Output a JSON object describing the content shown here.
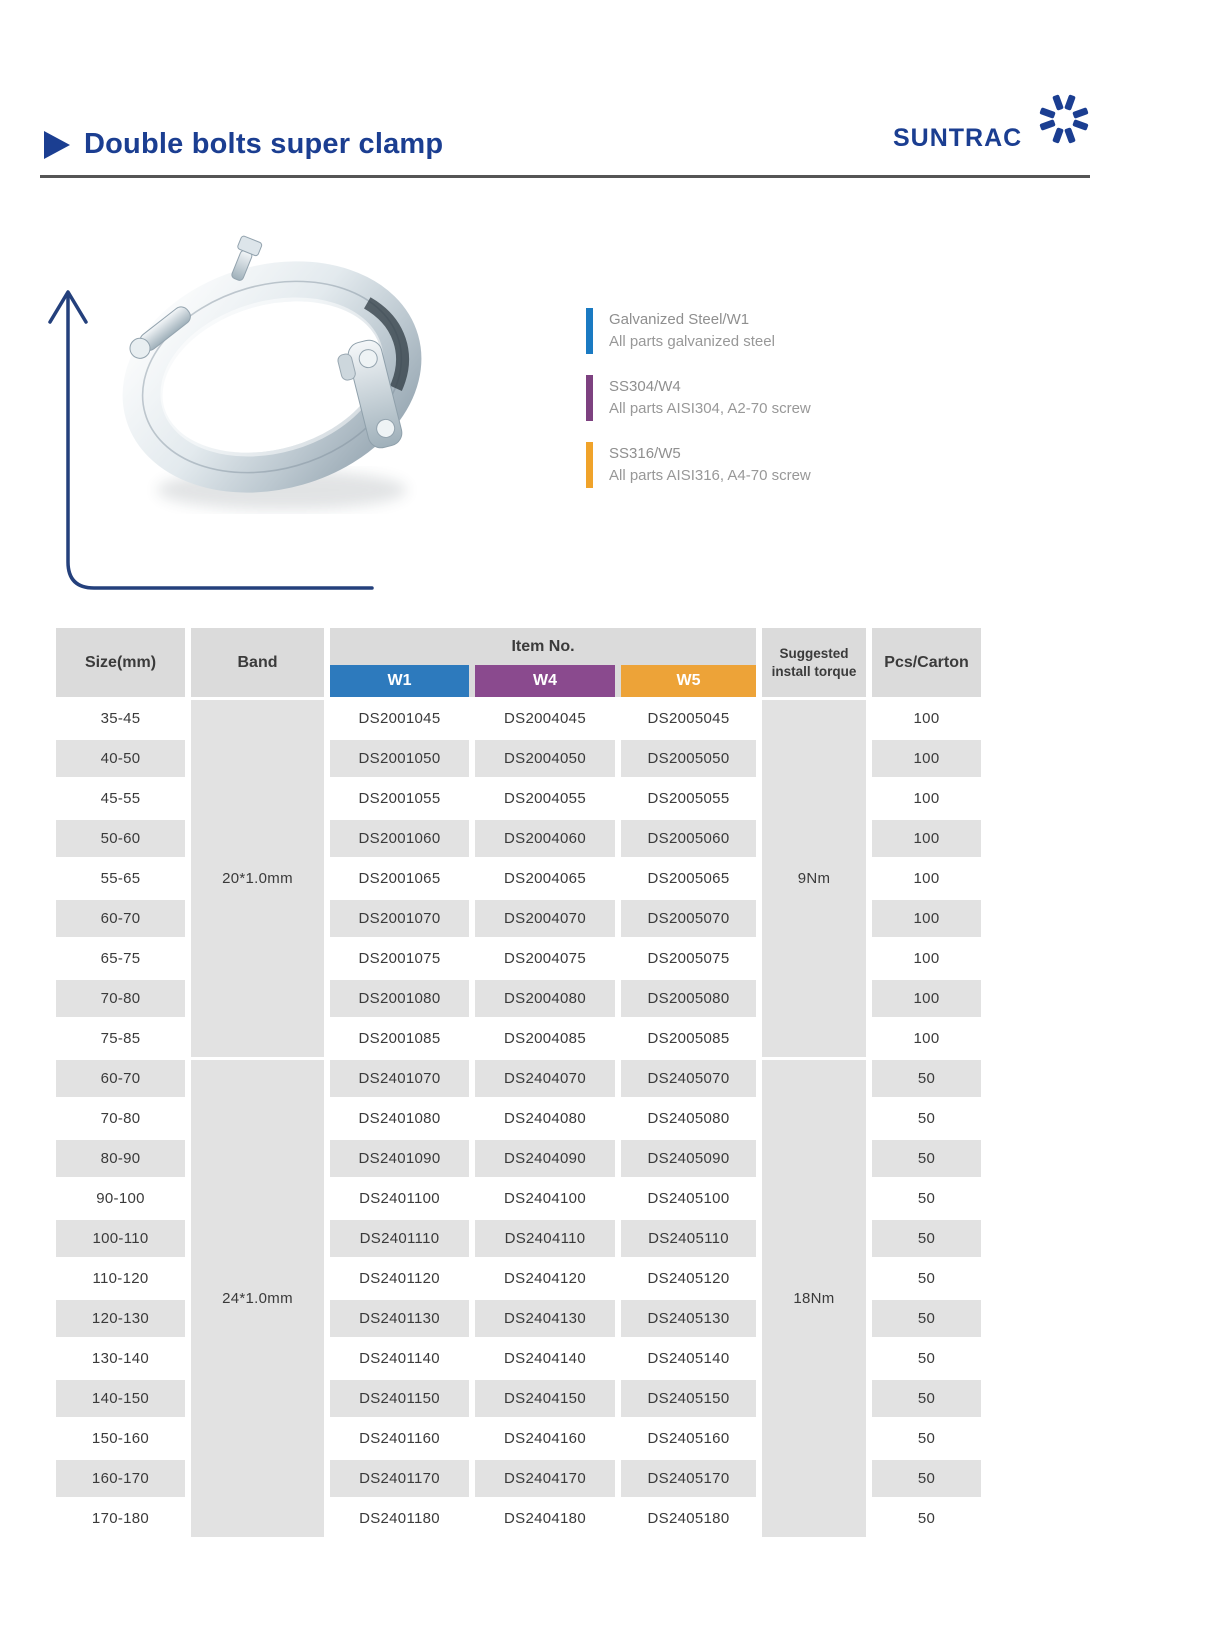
{
  "page": {
    "title": "Double bolts super clamp",
    "brand": "SUNTRAC",
    "colors": {
      "navy": "#1b3e91",
      "rule": "#555555"
    }
  },
  "legend": [
    {
      "code": "Galvanized Steel/W1",
      "desc": "All parts galvanized steel",
      "color": "#1a7ac2"
    },
    {
      "code": "SS304/W4",
      "desc": "All parts AISI304, A2-70 screw",
      "color": "#7d4180"
    },
    {
      "code": "SS316/W5",
      "desc": "All parts AISI316, A4-70 screw",
      "color": "#f0a32a"
    }
  ],
  "table": {
    "headers": {
      "size": "Size(mm)",
      "band": "Band",
      "item_no": "Item No.",
      "w1": "W1",
      "w4": "W4",
      "w5": "W5",
      "torque": "Suggested install torque",
      "pcs": "Pcs/Carton"
    },
    "colors": {
      "w1": "#2d7abd",
      "w4": "#8a4a8e",
      "w5": "#eda338"
    },
    "groups": [
      {
        "band": "20*1.0mm",
        "torque": "9Nm",
        "rows": [
          {
            "size": "35-45",
            "w1": "DS2001045",
            "w4": "DS2004045",
            "w5": "DS2005045",
            "pcs": "100"
          },
          {
            "size": "40-50",
            "w1": "DS2001050",
            "w4": "DS2004050",
            "w5": "DS2005050",
            "pcs": "100"
          },
          {
            "size": "45-55",
            "w1": "DS2001055",
            "w4": "DS2004055",
            "w5": "DS2005055",
            "pcs": "100"
          },
          {
            "size": "50-60",
            "w1": "DS2001060",
            "w4": "DS2004060",
            "w5": "DS2005060",
            "pcs": "100"
          },
          {
            "size": "55-65",
            "w1": "DS2001065",
            "w4": "DS2004065",
            "w5": "DS2005065",
            "pcs": "100"
          },
          {
            "size": "60-70",
            "w1": "DS2001070",
            "w4": "DS2004070",
            "w5": "DS2005070",
            "pcs": "100"
          },
          {
            "size": "65-75",
            "w1": "DS2001075",
            "w4": "DS2004075",
            "w5": "DS2005075",
            "pcs": "100"
          },
          {
            "size": "70-80",
            "w1": "DS2001080",
            "w4": "DS2004080",
            "w5": "DS2005080",
            "pcs": "100"
          },
          {
            "size": "75-85",
            "w1": "DS2001085",
            "w4": "DS2004085",
            "w5": "DS2005085",
            "pcs": "100"
          }
        ]
      },
      {
        "band": "24*1.0mm",
        "torque": "18Nm",
        "rows": [
          {
            "size": "60-70",
            "w1": "DS2401070",
            "w4": "DS2404070",
            "w5": "DS2405070",
            "pcs": "50"
          },
          {
            "size": "70-80",
            "w1": "DS2401080",
            "w4": "DS2404080",
            "w5": "DS2405080",
            "pcs": "50"
          },
          {
            "size": "80-90",
            "w1": "DS2401090",
            "w4": "DS2404090",
            "w5": "DS2405090",
            "pcs": "50"
          },
          {
            "size": "90-100",
            "w1": "DS2401100",
            "w4": "DS2404100",
            "w5": "DS2405100",
            "pcs": "50"
          },
          {
            "size": "100-110",
            "w1": "DS2401110",
            "w4": "DS2404110",
            "w5": "DS2405110",
            "pcs": "50"
          },
          {
            "size": "110-120",
            "w1": "DS2401120",
            "w4": "DS2404120",
            "w5": "DS2405120",
            "pcs": "50"
          },
          {
            "size": "120-130",
            "w1": "DS2401130",
            "w4": "DS2404130",
            "w5": "DS2405130",
            "pcs": "50"
          },
          {
            "size": "130-140",
            "w1": "DS2401140",
            "w4": "DS2404140",
            "w5": "DS2405140",
            "pcs": "50"
          },
          {
            "size": "140-150",
            "w1": "DS2401150",
            "w4": "DS2404150",
            "w5": "DS2405150",
            "pcs": "50"
          },
          {
            "size": "150-160",
            "w1": "DS2401160",
            "w4": "DS2404160",
            "w5": "DS2405160",
            "pcs": "50"
          },
          {
            "size": "160-170",
            "w1": "DS2401170",
            "w4": "DS2404170",
            "w5": "DS2405170",
            "pcs": "50"
          },
          {
            "size": "170-180",
            "w1": "DS2401180",
            "w4": "DS2404180",
            "w5": "DS2405180",
            "pcs": "50"
          }
        ]
      }
    ]
  }
}
